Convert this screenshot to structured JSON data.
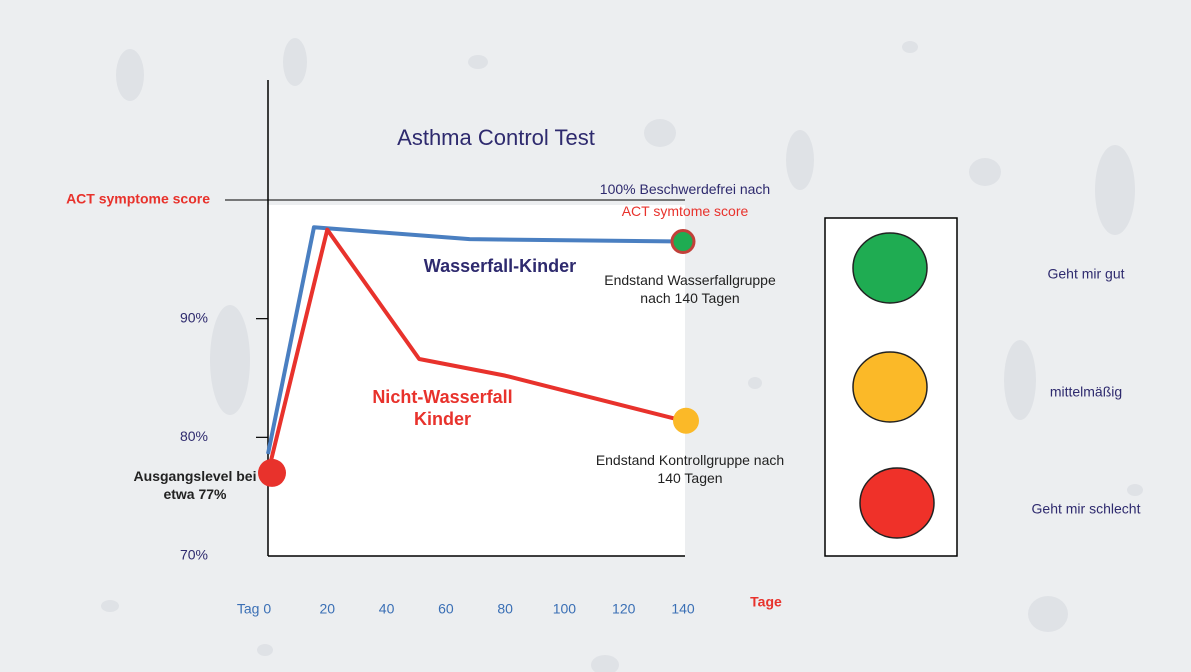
{
  "chart_data": {
    "type": "line",
    "title": "Asthma Control Test",
    "x_label": "Tage",
    "xlim": [
      0,
      140
    ],
    "xticks": [
      {
        "value": 0,
        "label": "Tag 0"
      },
      20,
      40,
      60,
      80,
      100,
      120,
      140
    ],
    "ylim": [
      70,
      100
    ],
    "yticks": [
      {
        "value": 70,
        "label": "70%"
      },
      {
        "value": 80,
        "label": "80%"
      },
      {
        "value": 90,
        "label": "90%"
      },
      {
        "value": 100,
        "label": "ACT symptome score"
      }
    ],
    "series": [
      {
        "name": "Wasserfall-Kinder",
        "color": "#4a7fc1",
        "x": [
          0,
          15.5,
          68,
          140
        ],
        "values": [
          78.6,
          97.7,
          96.7,
          96.5
        ]
      },
      {
        "name": "Nicht-Wasserfall Kinder",
        "color": "#e8322c",
        "x": [
          0,
          20,
          51,
          80,
          140
        ],
        "values": [
          77,
          97.5,
          86.6,
          85.2,
          81.4
        ]
      }
    ],
    "annotations": {
      "top_line_1": "100% Beschwerdefrei nach",
      "top_line_2": "ACT symtome score",
      "end_water": "Endstand Wasserfallgruppe nach 140 Tagen",
      "end_control": "Endstand Kontrollgruppe nach 140 Tagen",
      "start": "Ausgangslevel bei etwa 77%"
    },
    "traffic_light": [
      {
        "label": "Geht mir gut",
        "color": "#1fac52"
      },
      {
        "label": "mittelmäßig",
        "color": "#fbb928"
      },
      {
        "label": "Geht mir schlecht",
        "color": "#ef3129"
      }
    ]
  }
}
